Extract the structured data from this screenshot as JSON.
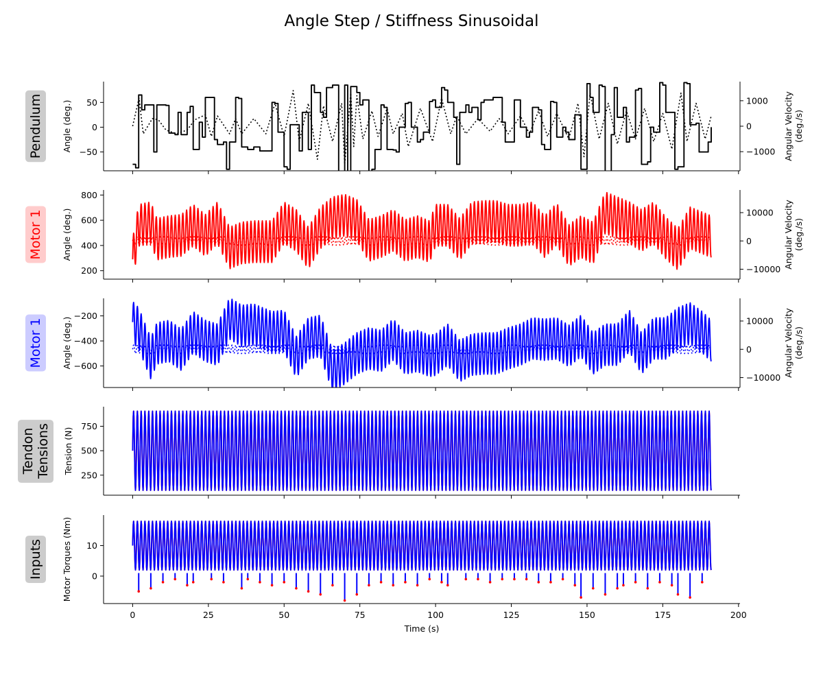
{
  "figure": {
    "title": "Angle Step / Stiffness Sinusoidal",
    "xlabel": "Time (s)"
  },
  "colors": {
    "pendulum": "#000000",
    "motor1": "#ff0000",
    "motor2": "#0000ff",
    "label_gray": "#cccccc",
    "label_red": "#ffcccc",
    "label_blue": "#ccccff"
  },
  "chart_data": [
    {
      "type": "line",
      "row_label": "Pendulum",
      "row_label_color": "#000000",
      "row_label_bg": "#cccccc",
      "ylabel": "Angle (deg.)",
      "ylabel_right": "Angular Velocity (deg./s)",
      "ylim": [
        -88,
        92
      ],
      "yticks": [
        -50,
        0,
        50
      ],
      "ylim_right": [
        -1750,
        1750
      ],
      "yticks_right": [
        -1000,
        0,
        1000
      ],
      "xlim": [
        -9.6,
        200.5
      ],
      "xticks": [
        0,
        25,
        50,
        75,
        100,
        125,
        150,
        175,
        200
      ],
      "series": [
        {
          "role": "angle",
          "axis": "left",
          "style": "solid",
          "color": "#000000",
          "kind": "step",
          "x": [
            0,
            1,
            2,
            3,
            4,
            6,
            7,
            8,
            10,
            11,
            12,
            14,
            15,
            16,
            18,
            19,
            20,
            22,
            23,
            24,
            26,
            27,
            28,
            30,
            31,
            32,
            34,
            35,
            36,
            38,
            39,
            40,
            42,
            44,
            46,
            47,
            48,
            50,
            51,
            52,
            54,
            55,
            56,
            58,
            59,
            60,
            62,
            63,
            64,
            66,
            67,
            68,
            70,
            71,
            72,
            74,
            75,
            76,
            78,
            79,
            80,
            82,
            83,
            84,
            86,
            87,
            88,
            90,
            91,
            92,
            94,
            95,
            96,
            98,
            99,
            100,
            102,
            103,
            104,
            106,
            107,
            108,
            110,
            111,
            112,
            114,
            115,
            116,
            118,
            119,
            120,
            122,
            123,
            124,
            126,
            127,
            128,
            130,
            131,
            132,
            134,
            135,
            136,
            138,
            139,
            140,
            142,
            143,
            144,
            146,
            147,
            148,
            150,
            151,
            152,
            154,
            155,
            156,
            158,
            159,
            160,
            162,
            163,
            164,
            166,
            167,
            168,
            170,
            171,
            172,
            174,
            175,
            176,
            178,
            179,
            180,
            182,
            183,
            184,
            186,
            187,
            188,
            190,
            191
          ],
          "y": [
            -75,
            -82,
            65,
            35,
            45,
            45,
            -50,
            45,
            45,
            44,
            -12,
            -15,
            30,
            -15,
            30,
            42,
            -45,
            10,
            -20,
            60,
            60,
            -25,
            -35,
            -30,
            -85,
            -30,
            60,
            58,
            -40,
            -45,
            -45,
            -40,
            -48,
            -48,
            50,
            48,
            -10,
            -80,
            -85,
            5,
            5,
            -48,
            30,
            -45,
            85,
            70,
            30,
            20,
            80,
            85,
            85,
            -90,
            85,
            -90,
            82,
            70,
            45,
            55,
            -90,
            -85,
            -45,
            45,
            40,
            -45,
            -46,
            -50,
            0,
            48,
            50,
            0,
            -30,
            -25,
            -10,
            52,
            55,
            40,
            80,
            75,
            50,
            20,
            -75,
            30,
            45,
            30,
            40,
            15,
            50,
            55,
            55,
            60,
            60,
            10,
            -30,
            -30,
            55,
            55,
            0,
            -20,
            -10,
            40,
            35,
            -35,
            -45,
            52,
            50,
            -20,
            0,
            -10,
            -25,
            25,
            25,
            -85,
            88,
            60,
            30,
            85,
            82,
            -90,
            -15,
            80,
            20,
            40,
            -30,
            -20,
            75,
            78,
            -75,
            -70,
            0,
            -10,
            90,
            85,
            30,
            30,
            -85,
            -80,
            90,
            88,
            5,
            8,
            -50,
            -50,
            -30,
            0
          ]
        },
        {
          "role": "angular velocity",
          "axis": "right",
          "style": "dotted",
          "color": "#000000",
          "x": [
            0,
            2.1,
            3.5,
            6.5,
            8.5,
            11,
            14.5,
            18,
            20.5,
            24,
            26,
            28,
            32,
            34,
            36,
            40,
            44,
            47,
            50,
            53,
            55,
            58,
            61,
            63,
            66,
            69,
            70,
            72,
            73,
            74,
            76,
            79,
            81,
            84,
            86,
            89,
            91,
            95,
            99,
            102,
            105,
            107,
            110,
            114,
            118,
            121,
            124,
            128,
            131,
            134,
            137,
            140,
            144,
            147,
            149,
            151,
            154,
            157,
            160,
            163,
            166,
            169,
            172,
            175,
            178,
            181,
            183,
            186,
            189,
            191
          ],
          "y": [
            0,
            1100,
            -300,
            300,
            250,
            -150,
            -300,
            -150,
            250,
            450,
            -400,
            400,
            -300,
            300,
            -300,
            300,
            -300,
            900,
            -400,
            1400,
            -600,
            900,
            -1300,
            800,
            -600,
            900,
            -1500,
            1300,
            -800,
            1200,
            -500,
            600,
            -400,
            700,
            -300,
            500,
            -800,
            700,
            -600,
            1100,
            -300,
            400,
            -300,
            300,
            -200,
            300,
            -300,
            400,
            -300,
            600,
            -400,
            500,
            -500,
            900,
            -1200,
            1300,
            -500,
            900,
            -700,
            600,
            -500,
            700,
            -600,
            500,
            -900,
            1300,
            -600,
            900,
            -500,
            400
          ]
        }
      ]
    },
    {
      "type": "line",
      "row_label": "Motor 1",
      "row_label_color": "#ff0000",
      "row_label_bg": "#ffcccc",
      "ylabel": "Angle (deg.)",
      "ylabel_right": "Angular Velocity (deg./s)",
      "ylim": [
        133,
        840
      ],
      "yticks": [
        200,
        400,
        600,
        800
      ],
      "ylim_right": [
        -13500,
        18000
      ],
      "yticks_right": [
        -10000,
        0,
        10000
      ],
      "xlim": [
        -9.6,
        200.5
      ],
      "xticks": [
        0,
        25,
        50,
        75,
        100,
        125,
        150,
        175,
        200
      ],
      "series": [
        {
          "role": "angle",
          "axis": "left",
          "style": "solid",
          "color": "#ff0000",
          "kind": "oscillation",
          "period_s": 1.25,
          "center_x": [
            0,
            2,
            6,
            8,
            12,
            16,
            20,
            24,
            28,
            32,
            36,
            40,
            46,
            50,
            54,
            58,
            62,
            66,
            70,
            74,
            78,
            82,
            86,
            90,
            94,
            98,
            100,
            104,
            108,
            112,
            116,
            120,
            124,
            128,
            132,
            136,
            140,
            144,
            148,
            152,
            156,
            160,
            164,
            168,
            172,
            176,
            180,
            184,
            188,
            191
          ],
          "center_y": [
            290,
            560,
            580,
            450,
            470,
            480,
            560,
            480,
            580,
            380,
            420,
            430,
            430,
            580,
            520,
            380,
            540,
            620,
            640,
            600,
            440,
            470,
            520,
            440,
            470,
            430,
            560,
            560,
            450,
            580,
            590,
            590,
            560,
            560,
            580,
            470,
            570,
            400,
            470,
            420,
            660,
            620,
            580,
            520,
            580,
            460,
            370,
            540,
            500,
            470
          ],
          "amplitude": 165
        },
        {
          "role": "angular velocity",
          "axis": "right",
          "style": "dotted",
          "color": "#ff0000",
          "kind": "oscillation",
          "period_s": 1.25,
          "center_x": [
            0,
            191
          ],
          "center_y": [
            0,
            0
          ],
          "amplitude": 1500
        }
      ]
    },
    {
      "type": "line",
      "row_label": "Motor 1",
      "row_label_color": "#0000ff",
      "row_label_bg": "#ccccff",
      "ylabel": "Angle (deg.)",
      "ylabel_right": "Angular Velocity (deg./s)",
      "ylim": [
        -772,
        -60
      ],
      "yticks": [
        -600,
        -400,
        -200
      ],
      "ylim_right": [
        -13500,
        18000
      ],
      "yticks_right": [
        -10000,
        0,
        10000
      ],
      "xlim": [
        -9.6,
        200.5
      ],
      "xticks": [
        0,
        25,
        50,
        75,
        100,
        125,
        150,
        175,
        200
      ],
      "series": [
        {
          "role": "angle",
          "axis": "left",
          "style": "solid",
          "color": "#0000ff",
          "kind": "oscillation",
          "period_s": 1.25,
          "center_x": [
            0,
            2,
            6,
            8,
            12,
            16,
            20,
            24,
            28,
            32,
            36,
            40,
            46,
            50,
            54,
            58,
            62,
            66,
            70,
            74,
            78,
            82,
            86,
            90,
            94,
            98,
            100,
            104,
            108,
            112,
            116,
            120,
            124,
            128,
            132,
            136,
            140,
            144,
            148,
            152,
            156,
            160,
            164,
            168,
            172,
            176,
            180,
            184,
            188,
            191
          ],
          "center_y": [
            -250,
            -300,
            -540,
            -420,
            -400,
            -470,
            -330,
            -400,
            -430,
            -220,
            -280,
            -270,
            -330,
            -320,
            -530,
            -380,
            -360,
            -640,
            -580,
            -500,
            -460,
            -480,
            -390,
            -500,
            -480,
            -520,
            -510,
            -430,
            -560,
            -510,
            -500,
            -500,
            -460,
            -430,
            -380,
            -390,
            -380,
            -440,
            -360,
            -500,
            -430,
            -430,
            -320,
            -500,
            -380,
            -380,
            -300,
            -260,
            -330,
            -400
          ],
          "amplitude": 165
        },
        {
          "role": "angular velocity",
          "axis": "right",
          "style": "dotted",
          "color": "#0000ff",
          "kind": "oscillation",
          "period_s": 1.25,
          "center_x": [
            0,
            191
          ],
          "center_y": [
            0,
            0
          ],
          "amplitude": 1500
        }
      ]
    },
    {
      "type": "line",
      "row_label": "Tendon\nTensions",
      "row_label_color": "#000000",
      "row_label_bg": "#cccccc",
      "ylabel": "Tension (N)",
      "ylim": [
        45,
        950
      ],
      "yticks": [
        250,
        500,
        750
      ],
      "xlim": [
        -9.6,
        200.5
      ],
      "xticks": [
        0,
        25,
        50,
        75,
        100,
        125,
        150,
        175,
        200
      ],
      "series": [
        {
          "role": "tendon 1",
          "style": "solid",
          "color": "#ff0000",
          "kind": "oscillation",
          "period_s": 1.25,
          "center_x": [
            0,
            191
          ],
          "center_y": [
            500,
            500
          ],
          "amplitude": 405
        },
        {
          "role": "tendon 2",
          "style": "solid",
          "color": "#0000ff",
          "kind": "oscillation",
          "period_s": 1.25,
          "center_x": [
            0,
            191
          ],
          "center_y": [
            500,
            500
          ],
          "amplitude": 405
        }
      ]
    },
    {
      "type": "line",
      "row_label": "Inputs",
      "row_label_color": "#000000",
      "row_label_bg": "#cccccc",
      "ylabel": "Motor Torques (Nm)",
      "ylim": [
        -9,
        20
      ],
      "yticks": [
        0,
        10
      ],
      "xlim": [
        -9.6,
        200.5
      ],
      "xticks": [
        0,
        25,
        50,
        75,
        100,
        125,
        150,
        175,
        200
      ],
      "series": [
        {
          "role": "motor 1 torque",
          "style": "solid",
          "color": "#ff0000",
          "kind": "oscillation",
          "period_s": 1.25,
          "center_x": [
            0,
            191
          ],
          "center_y": [
            10,
            10
          ],
          "amplitude": 8
        },
        {
          "role": "motor 2 torque",
          "style": "solid",
          "color": "#0000ff",
          "kind": "oscillation",
          "period_s": 1.25,
          "center_x": [
            0,
            191
          ],
          "center_y": [
            10,
            10
          ],
          "amplitude": 8
        }
      ],
      "dips": {
        "x": [
          2,
          6,
          10,
          14,
          18,
          20,
          26,
          30,
          36,
          38,
          42,
          46,
          50,
          54,
          58,
          62,
          66,
          70,
          74,
          78,
          82,
          86,
          90,
          94,
          98,
          102,
          104,
          110,
          114,
          118,
          122,
          126,
          130,
          134,
          138,
          142,
          146,
          148,
          152,
          156,
          160,
          162,
          166,
          170,
          174,
          178,
          180,
          184,
          188
        ],
        "y": [
          -5,
          -4,
          -2,
          -1,
          -3,
          -2,
          -1,
          -2,
          -4,
          -1,
          -2,
          -3,
          -2,
          -4,
          -5,
          -6,
          -3,
          -8,
          -6,
          -3,
          -2,
          -3,
          -2,
          -3,
          -1,
          -2,
          -3,
          -1,
          -1,
          -2,
          -1,
          -1,
          -1,
          -2,
          -2,
          -1,
          -3,
          -7,
          -4,
          -6,
          -4,
          -3,
          -2,
          -4,
          -2,
          -3,
          -6,
          -7,
          -2
        ]
      }
    }
  ]
}
